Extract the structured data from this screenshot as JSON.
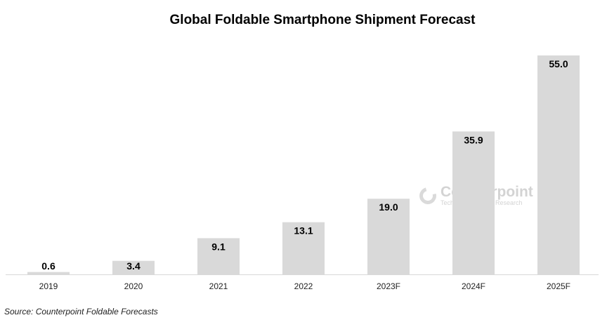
{
  "chart_data": {
    "type": "bar",
    "title": "Global Foldable Smartphone Shipment Forecast",
    "categories": [
      "2019",
      "2020",
      "2021",
      "2022",
      "2023F",
      "2024F",
      "2025F"
    ],
    "values": [
      0.6,
      3.4,
      9.1,
      13.1,
      19.0,
      35.9,
      55.0
    ],
    "data_labels": [
      "0.6",
      "3.4",
      "9.1",
      "13.1",
      "19.0",
      "35.9",
      "55.0"
    ],
    "xlabel": "",
    "ylabel": "",
    "ylim": [
      0,
      55
    ],
    "grid": false,
    "bar_color": "#d9d9d9",
    "source": "Source: Counterpoint Foldable Forecasts",
    "watermark": {
      "name": "Counterpoint",
      "tagline": "Technology Market Research"
    }
  }
}
